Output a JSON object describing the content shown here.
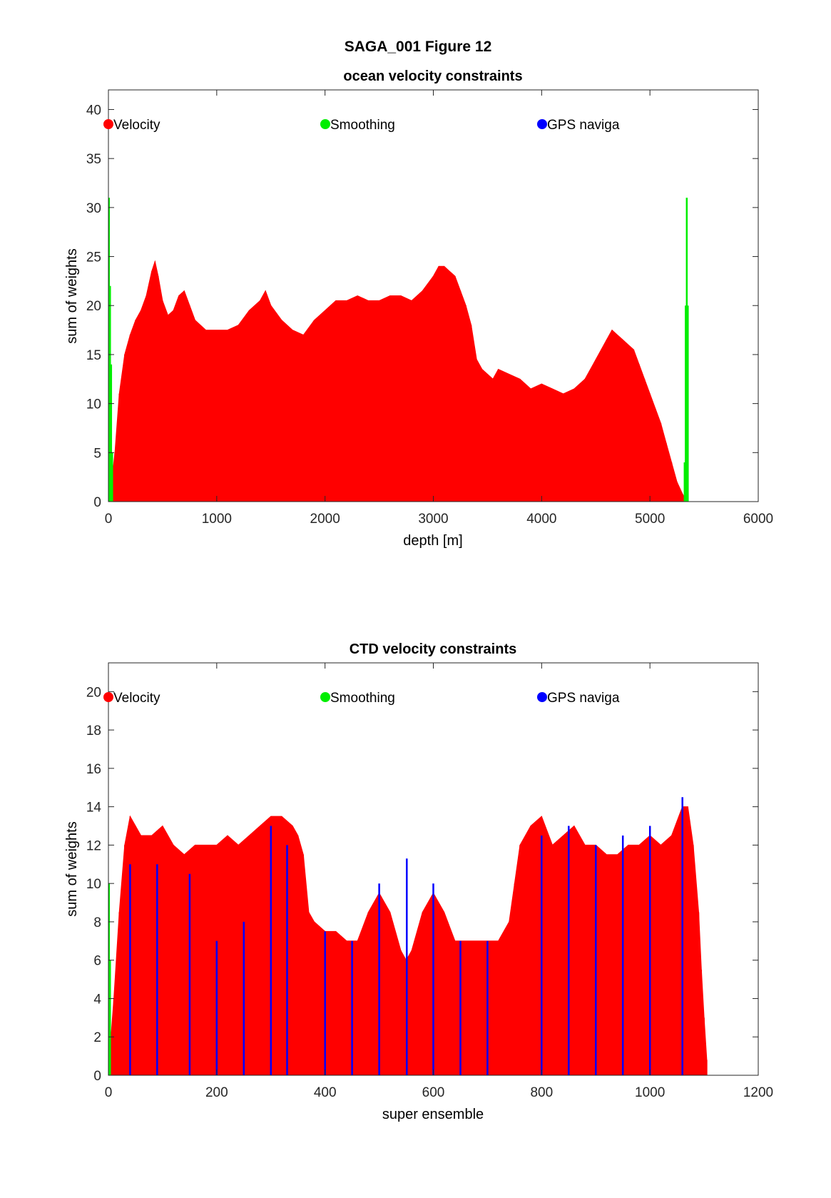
{
  "figure": {
    "title": "SAGA_001  Figure 12"
  },
  "legend_labels": [
    "Velocity",
    "Smoothing",
    "GPS naviga"
  ],
  "colors": {
    "velocity": "#ff0000",
    "smoothing": "#00ee00",
    "gps": "#0000ff"
  },
  "chart_data": [
    {
      "type": "bar",
      "title": "ocean velocity constraints",
      "xlabel": "depth [m]",
      "ylabel": "sum of weights",
      "xlim": [
        0,
        6000
      ],
      "ylim": [
        0,
        42
      ],
      "xticks": [
        0,
        1000,
        2000,
        3000,
        4000,
        5000,
        6000
      ],
      "yticks": [
        0,
        5,
        10,
        15,
        20,
        25,
        30,
        35,
        40
      ],
      "grid": false,
      "legend": {
        "placement": "top",
        "entries": [
          "Velocity",
          "Smoothing",
          "GPS naviga"
        ]
      },
      "series": [
        {
          "name": "Velocity",
          "x": [
            20,
            60,
            100,
            150,
            200,
            250,
            300,
            350,
            400,
            430,
            460,
            500,
            550,
            600,
            650,
            700,
            750,
            800,
            850,
            900,
            1000,
            1100,
            1200,
            1300,
            1400,
            1450,
            1500,
            1600,
            1700,
            1800,
            1900,
            2000,
            2100,
            2200,
            2300,
            2400,
            2500,
            2600,
            2700,
            2800,
            2900,
            3000,
            3050,
            3100,
            3150,
            3200,
            3250,
            3300,
            3350,
            3400,
            3450,
            3500,
            3550,
            3600,
            3700,
            3800,
            3900,
            4000,
            4100,
            4200,
            4300,
            4400,
            4500,
            4550,
            4600,
            4650,
            4700,
            4750,
            4800,
            4850,
            4900,
            4950,
            5000,
            5050,
            5100,
            5150,
            5200,
            5250,
            5300,
            5340
          ],
          "values": [
            1,
            5,
            11,
            15,
            17,
            18.5,
            19.5,
            21,
            23.5,
            24.5,
            23,
            20.5,
            19,
            19.5,
            21,
            21.5,
            20,
            18.5,
            18,
            17.5,
            17.5,
            17.5,
            18,
            19.5,
            20.5,
            21.5,
            20,
            18.5,
            17.5,
            17,
            18.5,
            19.5,
            20.5,
            20.5,
            21,
            20.5,
            20.5,
            21,
            21,
            20.5,
            21.5,
            23,
            24,
            24,
            23.5,
            23,
            21.5,
            20,
            18,
            14.5,
            13.5,
            13,
            12.5,
            13.5,
            13,
            12.5,
            11.5,
            12,
            11.5,
            11,
            11.5,
            12.5,
            14.5,
            15.5,
            16.5,
            17.5,
            17,
            16.5,
            16,
            15.5,
            14,
            12.5,
            11,
            9.5,
            8,
            6,
            4,
            2,
            0.8,
            0
          ]
        },
        {
          "name": "Smoothing",
          "x": [
            5,
            15,
            25,
            35,
            5320,
            5330,
            5340,
            5350
          ],
          "values": [
            31,
            22,
            14,
            5,
            4,
            20,
            31,
            20
          ]
        },
        {
          "name": "GPS naviga",
          "x": [],
          "values": []
        }
      ]
    },
    {
      "type": "bar",
      "title": "CTD velocity constraints",
      "xlabel": "super ensemble",
      "ylabel": "sum of weights",
      "xlim": [
        0,
        1200
      ],
      "ylim": [
        0,
        21.5
      ],
      "xticks": [
        0,
        200,
        400,
        600,
        800,
        1000,
        1200
      ],
      "yticks": [
        0,
        2,
        4,
        6,
        8,
        10,
        12,
        14,
        16,
        18,
        20
      ],
      "grid": false,
      "legend": {
        "placement": "top",
        "entries": [
          "Velocity",
          "Smoothing",
          "GPS naviga"
        ]
      },
      "series": [
        {
          "name": "Velocity",
          "x": [
            2,
            10,
            20,
            30,
            40,
            50,
            60,
            80,
            100,
            120,
            140,
            160,
            180,
            200,
            220,
            240,
            260,
            280,
            300,
            320,
            340,
            350,
            360,
            370,
            380,
            400,
            420,
            440,
            460,
            480,
            500,
            520,
            540,
            550,
            560,
            580,
            600,
            620,
            640,
            660,
            680,
            700,
            720,
            740,
            750,
            760,
            780,
            800,
            820,
            840,
            860,
            880,
            900,
            920,
            940,
            960,
            980,
            1000,
            1020,
            1040,
            1060,
            1070,
            1080,
            1090,
            1095,
            1100,
            1105
          ],
          "values": [
            1,
            4,
            8.5,
            12,
            13.5,
            13,
            12.5,
            12.5,
            13,
            12,
            11.5,
            12,
            12,
            12,
            12.5,
            12,
            12.5,
            13,
            13.5,
            13.5,
            13,
            12.5,
            11.5,
            8.5,
            8,
            7.5,
            7.5,
            7,
            7,
            8.5,
            9.5,
            8.5,
            6.5,
            6,
            6.5,
            8.5,
            9.5,
            8.5,
            7,
            7,
            7,
            7,
            7,
            8,
            10,
            12,
            13,
            13.5,
            12,
            12.5,
            13,
            12,
            12,
            11.5,
            11.5,
            12,
            12,
            12.5,
            12,
            12.5,
            14,
            14,
            12,
            8.5,
            5.5,
            3,
            0.8
          ]
        },
        {
          "name": "Smoothing",
          "x": [
            1,
            3
          ],
          "values": [
            10,
            6
          ]
        },
        {
          "name": "GPS naviga",
          "x": [
            40,
            90,
            150,
            200,
            250,
            300,
            330,
            400,
            450,
            500,
            551,
            600,
            650,
            700,
            800,
            850,
            900,
            950,
            1000,
            1060
          ],
          "values": [
            11,
            11,
            10.5,
            7,
            8,
            13,
            12,
            7.5,
            7,
            10,
            11.3,
            10,
            7,
            7,
            12.5,
            13,
            12,
            12.5,
            13,
            14.5
          ]
        }
      ]
    }
  ]
}
